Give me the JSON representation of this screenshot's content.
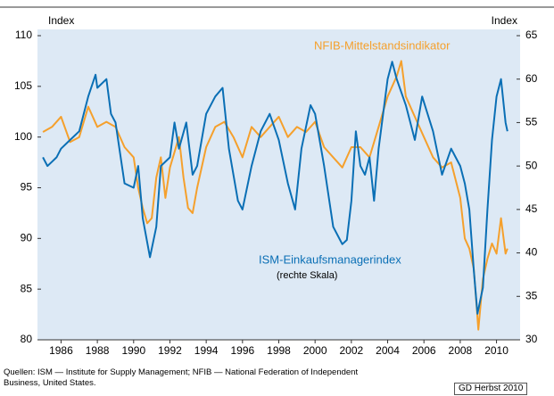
{
  "chart_data": {
    "type": "line",
    "y_label": "Index",
    "y2_label": "Index",
    "annotation": "(rechte Skala)",
    "source": "Quellen: ISM — Institute for Supply Management; NFIB — National Federation of Independent Business, United States.",
    "credit": "GD Herbst 2010",
    "xlim": [
      1984.7,
      2011.3
    ],
    "xticks": [
      1986,
      1988,
      1990,
      1992,
      1994,
      1996,
      1998,
      2000,
      2002,
      2004,
      2006,
      2008,
      2010
    ],
    "ylim": [
      80,
      110
    ],
    "yticks": [
      80,
      85,
      90,
      95,
      100,
      105,
      110
    ],
    "y2lim": [
      30,
      65
    ],
    "y2ticks": [
      30,
      35,
      40,
      45,
      50,
      55,
      60,
      65
    ],
    "grid": false,
    "series": [
      {
        "name": "NFIB-Mittelstandsindikator",
        "color": "#f5a02c",
        "x": [
          1985.0,
          1985.5,
          1986.0,
          1986.5,
          1987.0,
          1987.5,
          1988.0,
          1988.5,
          1989.0,
          1989.5,
          1990.0,
          1990.25,
          1990.5,
          1990.75,
          1991.0,
          1991.25,
          1991.5,
          1991.75,
          1992.0,
          1992.5,
          1992.75,
          1993.0,
          1993.25,
          1993.5,
          1994.0,
          1994.5,
          1995.0,
          1995.5,
          1996.0,
          1996.5,
          1997.0,
          1997.5,
          1998.0,
          1998.5,
          1999.0,
          1999.5,
          2000.0,
          2000.5,
          2001.0,
          2001.5,
          2002.0,
          2002.5,
          2003.0,
          2003.5,
          2004.0,
          2004.5,
          2004.75,
          2005.0,
          2005.5,
          2006.0,
          2006.5,
          2007.0,
          2007.5,
          2008.0,
          2008.25,
          2008.5,
          2008.75,
          2009.0,
          2009.25,
          2009.5,
          2009.75,
          2010.0,
          2010.25,
          2010.5,
          2010.6
        ],
        "values": [
          100.5,
          101,
          102,
          99.5,
          100,
          103,
          101,
          101.5,
          101,
          99,
          98,
          95,
          93,
          91.5,
          92,
          96,
          98,
          94,
          97,
          100,
          96,
          93,
          92.5,
          95,
          99,
          101,
          101.5,
          100,
          98,
          101,
          100,
          101,
          102,
          100,
          101,
          100.5,
          101.5,
          99,
          98,
          97,
          99,
          99,
          98,
          101,
          104,
          106,
          107.5,
          104,
          102,
          100,
          98,
          97,
          97.5,
          94,
          90,
          89,
          87,
          81,
          86,
          88,
          89.5,
          88.5,
          92,
          88.5,
          89
        ]
      },
      {
        "name": "ISM-Einkaufsmanagerindex",
        "color": "#0a6fb5",
        "axis": "y2",
        "x": [
          1985.0,
          1985.25,
          1985.5,
          1985.75,
          1986.0,
          1986.5,
          1987.0,
          1987.5,
          1987.9,
          1988.0,
          1988.5,
          1988.75,
          1989.0,
          1989.5,
          1990.0,
          1990.25,
          1990.5,
          1990.9,
          1991.25,
          1991.5,
          1992.0,
          1992.25,
          1992.5,
          1992.9,
          1993.25,
          1993.5,
          1994.0,
          1994.5,
          1994.9,
          1995.25,
          1995.75,
          1996.0,
          1996.5,
          1997.0,
          1997.5,
          1998.0,
          1998.5,
          1998.9,
          1999.25,
          1999.75,
          2000.0,
          2000.5,
          2001.0,
          2001.5,
          2001.75,
          2002.0,
          2002.25,
          2002.5,
          2002.75,
          2003.0,
          2003.25,
          2003.5,
          2004.0,
          2004.25,
          2004.5,
          2005.0,
          2005.5,
          2005.9,
          2006.5,
          2007.0,
          2007.5,
          2008.0,
          2008.25,
          2008.5,
          2008.75,
          2008.95,
          2009.25,
          2009.5,
          2009.75,
          2010.0,
          2010.25,
          2010.5,
          2010.6
        ],
        "values": [
          51,
          50,
          50.5,
          51,
          52,
          53,
          54,
          58,
          60.5,
          59,
          60,
          56,
          55,
          48,
          47.5,
          50,
          44,
          39.5,
          43,
          50,
          51,
          55,
          52,
          55,
          49,
          50,
          56,
          58,
          59,
          52,
          46,
          45,
          50,
          54,
          56,
          53,
          48,
          45,
          52,
          57,
          56,
          50,
          43,
          41,
          41.5,
          46,
          54,
          50,
          49,
          51,
          46,
          52,
          60,
          62,
          60,
          57,
          53,
          58,
          54,
          49,
          52,
          50,
          48,
          45,
          38,
          33,
          36,
          45,
          53,
          58,
          60,
          55,
          54
        ]
      }
    ]
  }
}
